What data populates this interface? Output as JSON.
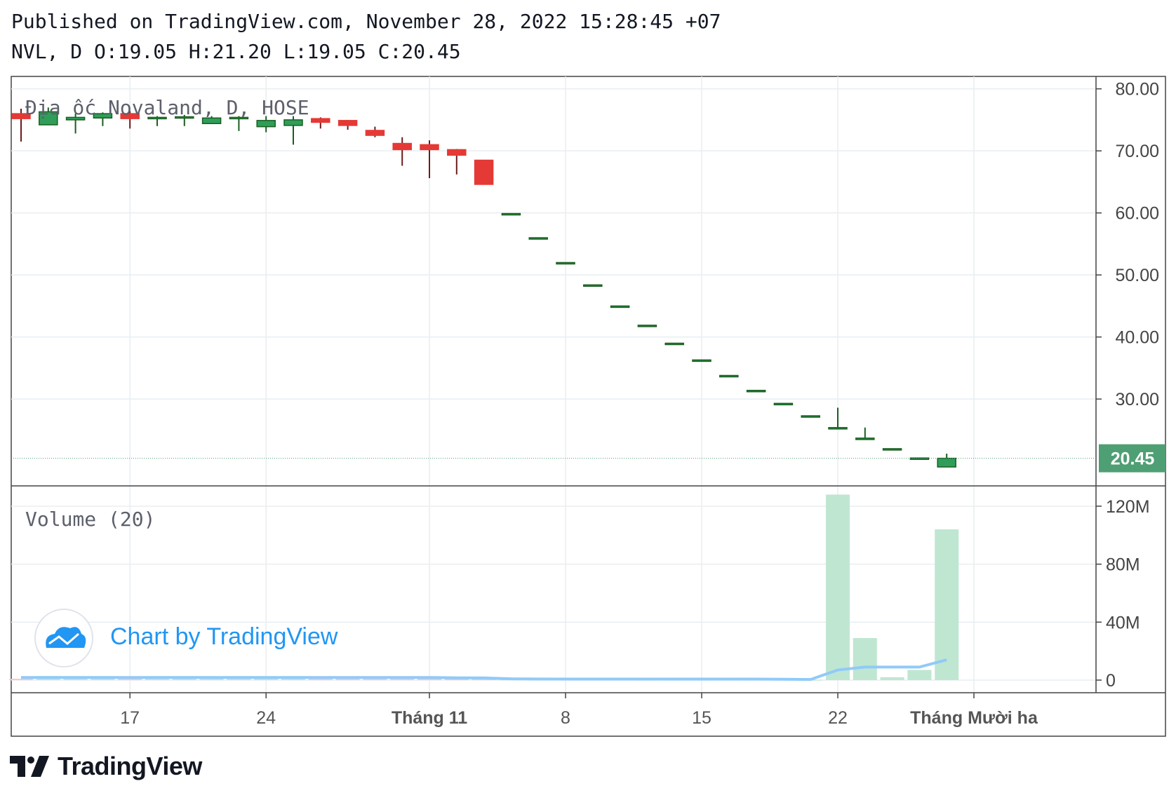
{
  "header": {
    "published": "Published on TradingView.com, November 28, 2022 15:28:45 +07",
    "ohlc": "NVL, D O:19.05 H:21.20 L:19.05 C:20.45"
  },
  "legend": {
    "symbol_title": "Địa ốc Novaland, D, HOSE",
    "volume_title": "Volume (20)"
  },
  "watermark": {
    "text": "Chart by TradingView"
  },
  "footer_logo": {
    "text": "TradingView"
  },
  "colors": {
    "up": "#2e9e5a",
    "down": "#e53935",
    "wick_up": "#1b5e20",
    "wick_down": "#6d1b1b",
    "volume_up": "#bfe6d1",
    "volume_down": "#f6c6c6",
    "volume_ma": "#90caf9",
    "last_price_bg": "#4f9f74",
    "grid": "#e8eef2",
    "watermark_blue": "#2196f3"
  },
  "chart_data": {
    "type": "candlestick",
    "symbol": "NVL",
    "interval": "D",
    "last_price_label": "20.45",
    "price_axis": {
      "ticks": [
        "80.00",
        "70.00",
        "60.00",
        "50.00",
        "40.00",
        "30.00"
      ],
      "tick_values": [
        80,
        70,
        60,
        50,
        40,
        30
      ],
      "ylim": [
        16,
        82
      ]
    },
    "volume_axis": {
      "ticks": [
        "120M",
        "80M",
        "40M",
        "0"
      ],
      "tick_values": [
        120,
        80,
        40,
        0
      ],
      "ylim": [
        0,
        134
      ]
    },
    "x_ticks": [
      {
        "label": "17",
        "index": 4,
        "bold": false
      },
      {
        "label": "24",
        "index": 9,
        "bold": false
      },
      {
        "label": "Tháng 11",
        "index": 15,
        "bold": true
      },
      {
        "label": "8",
        "index": 20,
        "bold": false
      },
      {
        "label": "15",
        "index": 25,
        "bold": false
      },
      {
        "label": "22",
        "index": 30,
        "bold": false
      },
      {
        "label": "Tháng Mười ha",
        "index": 35,
        "bold": true
      }
    ],
    "candles": [
      {
        "o": 76.0,
        "h": 76.8,
        "l": 71.5,
        "c": 75.2,
        "v": 0.9
      },
      {
        "o": 74.2,
        "h": 77.0,
        "l": 74.2,
        "c": 76.3,
        "v": 2.8
      },
      {
        "o": 75.0,
        "h": 76.0,
        "l": 72.8,
        "c": 75.4,
        "v": 1.5
      },
      {
        "o": 75.3,
        "h": 76.2,
        "l": 74.0,
        "c": 76.0,
        "v": 1.6
      },
      {
        "o": 76.0,
        "h": 76.4,
        "l": 73.6,
        "c": 75.2,
        "v": 1.5
      },
      {
        "o": 75.3,
        "h": 75.6,
        "l": 74.0,
        "c": 75.4,
        "v": 1.8
      },
      {
        "o": 75.3,
        "h": 75.8,
        "l": 74.0,
        "c": 75.5,
        "v": 1.3
      },
      {
        "o": 74.4,
        "h": 75.6,
        "l": 74.4,
        "c": 75.3,
        "v": 1.4
      },
      {
        "o": 75.3,
        "h": 75.6,
        "l": 73.2,
        "c": 75.4,
        "v": 1.2
      },
      {
        "o": 73.9,
        "h": 75.6,
        "l": 73.0,
        "c": 74.9,
        "v": 2.1
      },
      {
        "o": 74.1,
        "h": 75.6,
        "l": 71.0,
        "c": 75.0,
        "v": 1.4
      },
      {
        "o": 75.2,
        "h": 75.4,
        "l": 73.6,
        "c": 74.6,
        "v": 1.7
      },
      {
        "o": 74.9,
        "h": 74.9,
        "l": 73.4,
        "c": 74.1,
        "v": 1.5
      },
      {
        "o": 73.3,
        "h": 73.9,
        "l": 72.2,
        "c": 72.5,
        "v": 1.8
      },
      {
        "o": 71.2,
        "h": 72.2,
        "l": 67.6,
        "c": 70.2,
        "v": 2.6
      },
      {
        "o": 71.0,
        "h": 71.7,
        "l": 65.6,
        "c": 70.2,
        "v": 1.9
      },
      {
        "o": 70.2,
        "h": 70.3,
        "l": 66.2,
        "c": 69.3,
        "v": 1.5
      },
      {
        "o": 68.5,
        "h": 68.5,
        "l": 64.6,
        "c": 64.6,
        "v": 1.3
      },
      {
        "o": 59.9,
        "h": 59.9,
        "l": 59.9,
        "c": 59.9,
        "v": 0.4
      },
      {
        "o": 56.0,
        "h": 56.0,
        "l": 56.0,
        "c": 56.0,
        "v": 0.3
      },
      {
        "o": 52.0,
        "h": 52.0,
        "l": 52.0,
        "c": 52.0,
        "v": 0.3
      },
      {
        "o": 48.4,
        "h": 48.4,
        "l": 48.4,
        "c": 48.4,
        "v": 0.3
      },
      {
        "o": 45.0,
        "h": 45.0,
        "l": 45.0,
        "c": 45.0,
        "v": 0.3
      },
      {
        "o": 41.9,
        "h": 41.9,
        "l": 41.9,
        "c": 41.9,
        "v": 0.2
      },
      {
        "o": 39.0,
        "h": 39.0,
        "l": 39.0,
        "c": 39.0,
        "v": 0.2
      },
      {
        "o": 36.3,
        "h": 36.3,
        "l": 36.3,
        "c": 36.3,
        "v": 0.2
      },
      {
        "o": 33.8,
        "h": 33.8,
        "l": 33.8,
        "c": 33.8,
        "v": 0.2
      },
      {
        "o": 31.4,
        "h": 31.4,
        "l": 31.4,
        "c": 31.4,
        "v": 0.2
      },
      {
        "o": 29.3,
        "h": 29.3,
        "l": 29.3,
        "c": 29.3,
        "v": 0.2
      },
      {
        "o": 27.3,
        "h": 27.3,
        "l": 27.3,
        "c": 27.3,
        "v": 0.2
      },
      {
        "o": 25.4,
        "h": 28.6,
        "l": 25.4,
        "c": 25.4,
        "v": 128
      },
      {
        "o": 23.7,
        "h": 25.4,
        "l": 23.7,
        "c": 23.7,
        "v": 29
      },
      {
        "o": 22.0,
        "h": 22.0,
        "l": 22.0,
        "c": 22.0,
        "v": 2
      },
      {
        "o": 20.5,
        "h": 20.5,
        "l": 20.5,
        "c": 20.5,
        "v": 7
      },
      {
        "o": 19.05,
        "h": 21.2,
        "l": 19.05,
        "c": 20.45,
        "v": 104
      }
    ],
    "volume_ma": [
      1.8,
      1.8,
      1.8,
      1.8,
      1.8,
      1.8,
      1.8,
      1.8,
      1.8,
      1.8,
      1.8,
      1.8,
      1.8,
      1.8,
      1.8,
      1.8,
      1.6,
      1.5,
      0.9,
      0.8,
      0.7,
      0.7,
      0.7,
      0.7,
      0.7,
      0.7,
      0.7,
      0.7,
      0.6,
      0.4,
      7,
      9,
      9,
      9,
      14
    ]
  }
}
